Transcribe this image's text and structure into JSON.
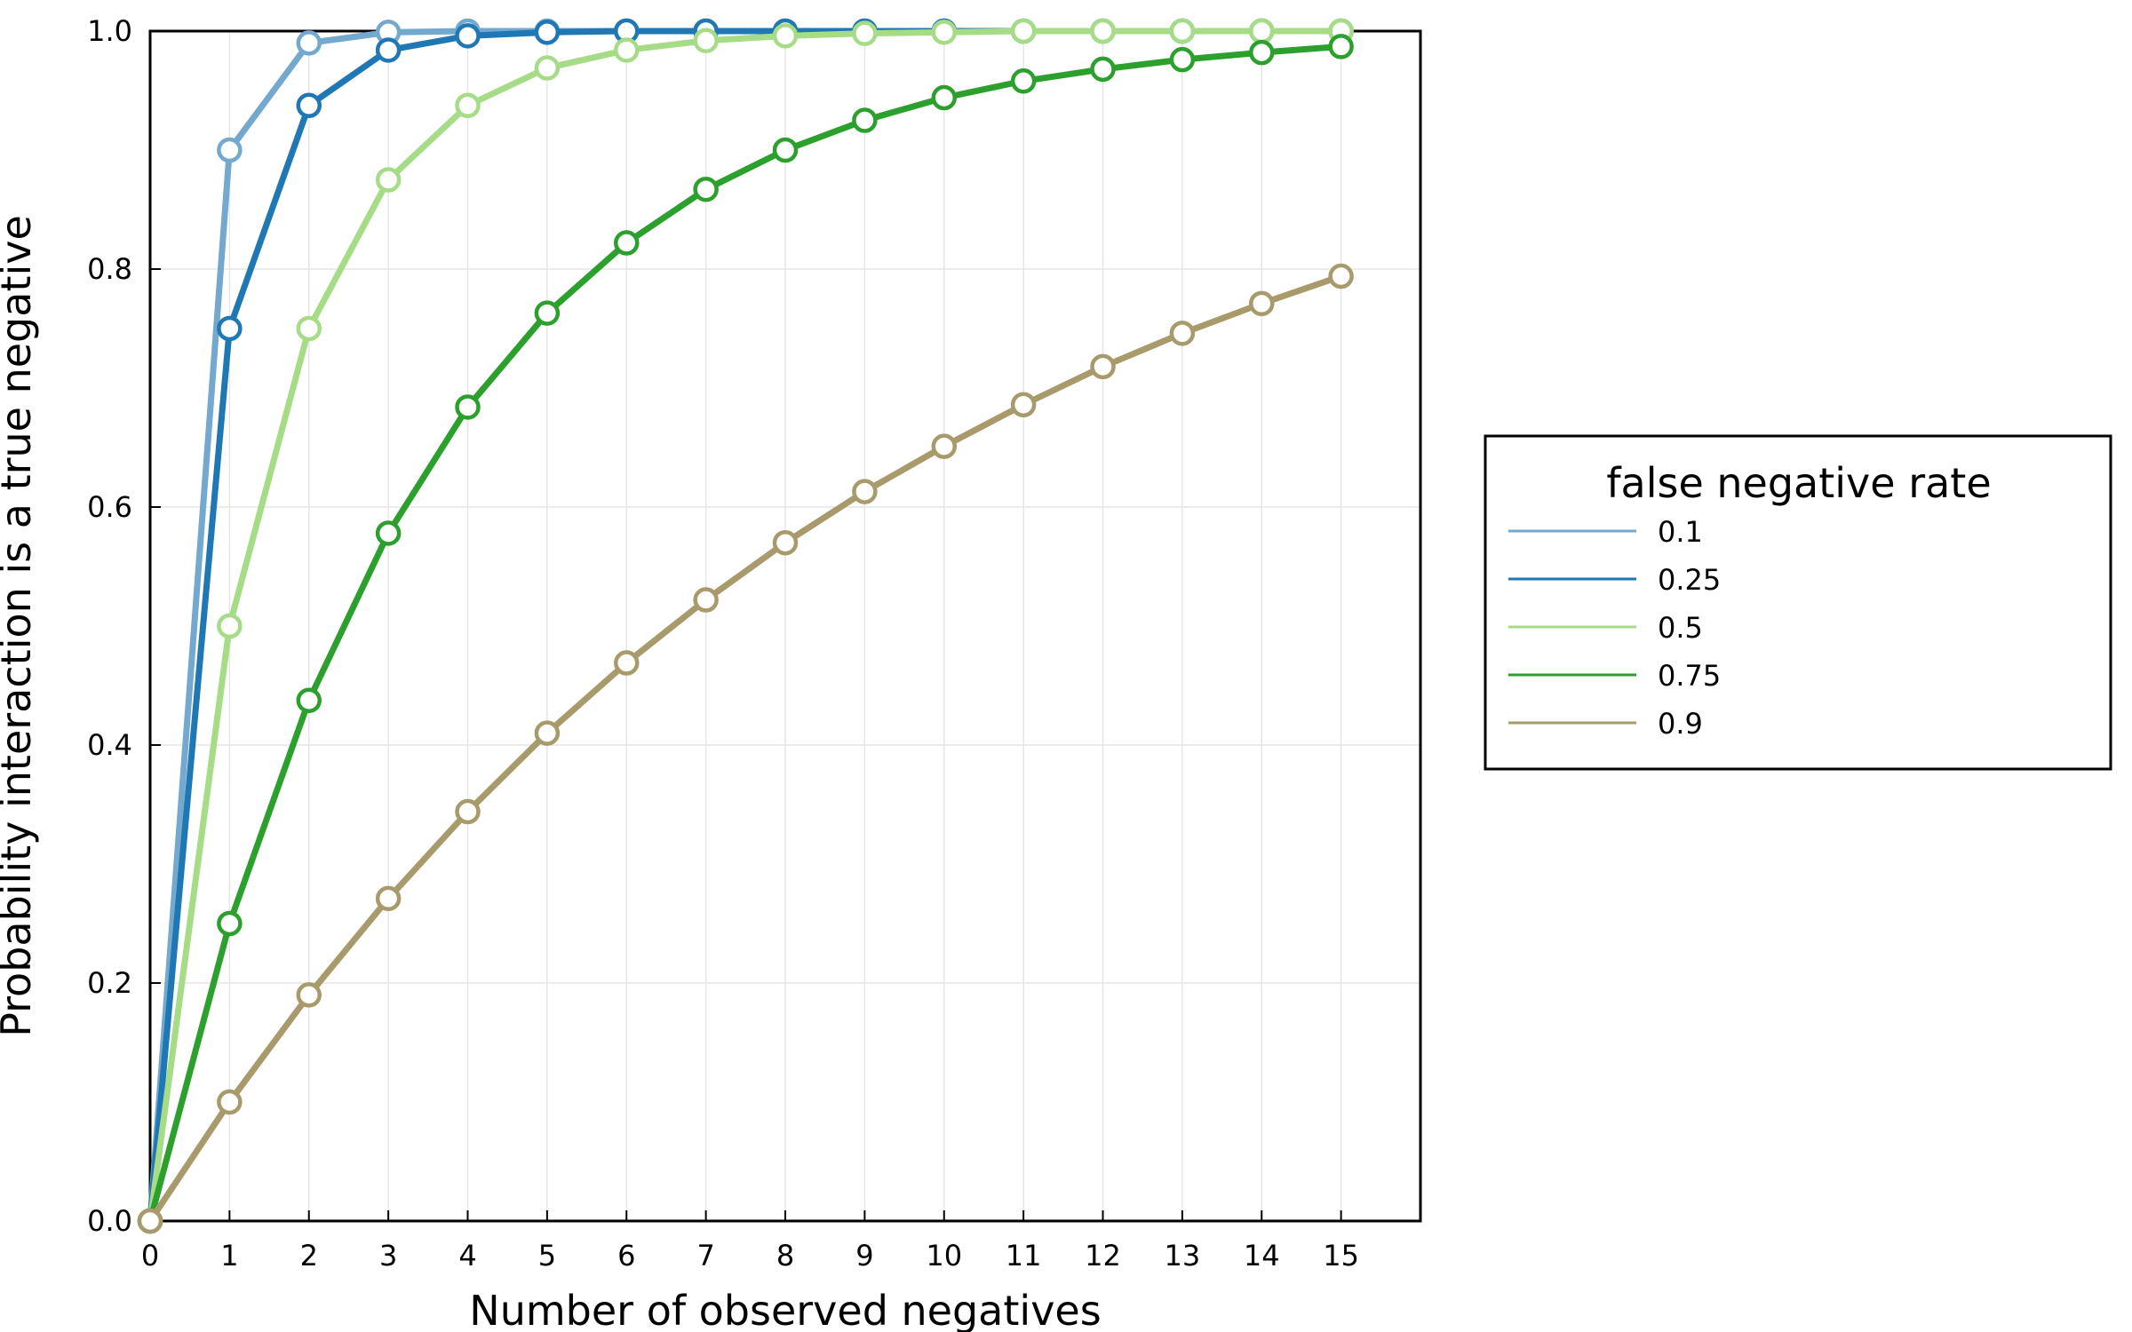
{
  "chart_data": {
    "type": "line",
    "title": "",
    "xlabel": "Number of observed negatives",
    "ylabel": "Probability interaction is a true negative",
    "xlim": [
      0,
      16
    ],
    "ylim": [
      0,
      1
    ],
    "xticks": [
      0,
      1,
      2,
      3,
      4,
      5,
      6,
      7,
      8,
      9,
      10,
      11,
      12,
      13,
      14,
      15
    ],
    "yticks": [
      0,
      0.2,
      0.4,
      0.6,
      0.8,
      1
    ],
    "ytick_labels": [
      "0.0",
      "0.2",
      "0.4",
      "0.6",
      "0.8",
      "1.0"
    ],
    "grid": true,
    "legend_title": "false negative rate",
    "legend_position": "outside-right",
    "x": [
      0,
      1,
      2,
      3,
      4,
      5,
      6,
      7,
      8,
      9,
      10,
      11,
      12,
      13,
      14,
      15
    ],
    "series": [
      {
        "name": "0.1",
        "color": "#73a8cf",
        "values": [
          0,
          0.9,
          0.99,
          0.999,
          1,
          1,
          1,
          1,
          1,
          1,
          1,
          1,
          1,
          1,
          1,
          1
        ]
      },
      {
        "name": "0.25",
        "color": "#1f77b4",
        "values": [
          0,
          0.75,
          0.9375,
          0.984,
          0.996,
          0.999,
          1,
          1,
          1,
          1,
          1,
          1,
          1,
          1,
          1,
          1
        ]
      },
      {
        "name": "0.5",
        "color": "#a6dc86",
        "values": [
          0,
          0.5,
          0.75,
          0.875,
          0.9375,
          0.969,
          0.984,
          0.992,
          0.996,
          0.998,
          0.999,
          1,
          1,
          1,
          1,
          1
        ]
      },
      {
        "name": "0.75",
        "color": "#2ca02c",
        "values": [
          0,
          0.25,
          0.4375,
          0.578,
          0.684,
          0.763,
          0.822,
          0.867,
          0.9,
          0.925,
          0.944,
          0.958,
          0.968,
          0.976,
          0.982,
          0.987
        ]
      },
      {
        "name": "0.9",
        "color": "#a89a6a",
        "values": [
          0,
          0.1,
          0.19,
          0.271,
          0.344,
          0.41,
          0.469,
          0.522,
          0.57,
          0.613,
          0.651,
          0.686,
          0.718,
          0.746,
          0.771,
          0.794
        ]
      }
    ]
  }
}
